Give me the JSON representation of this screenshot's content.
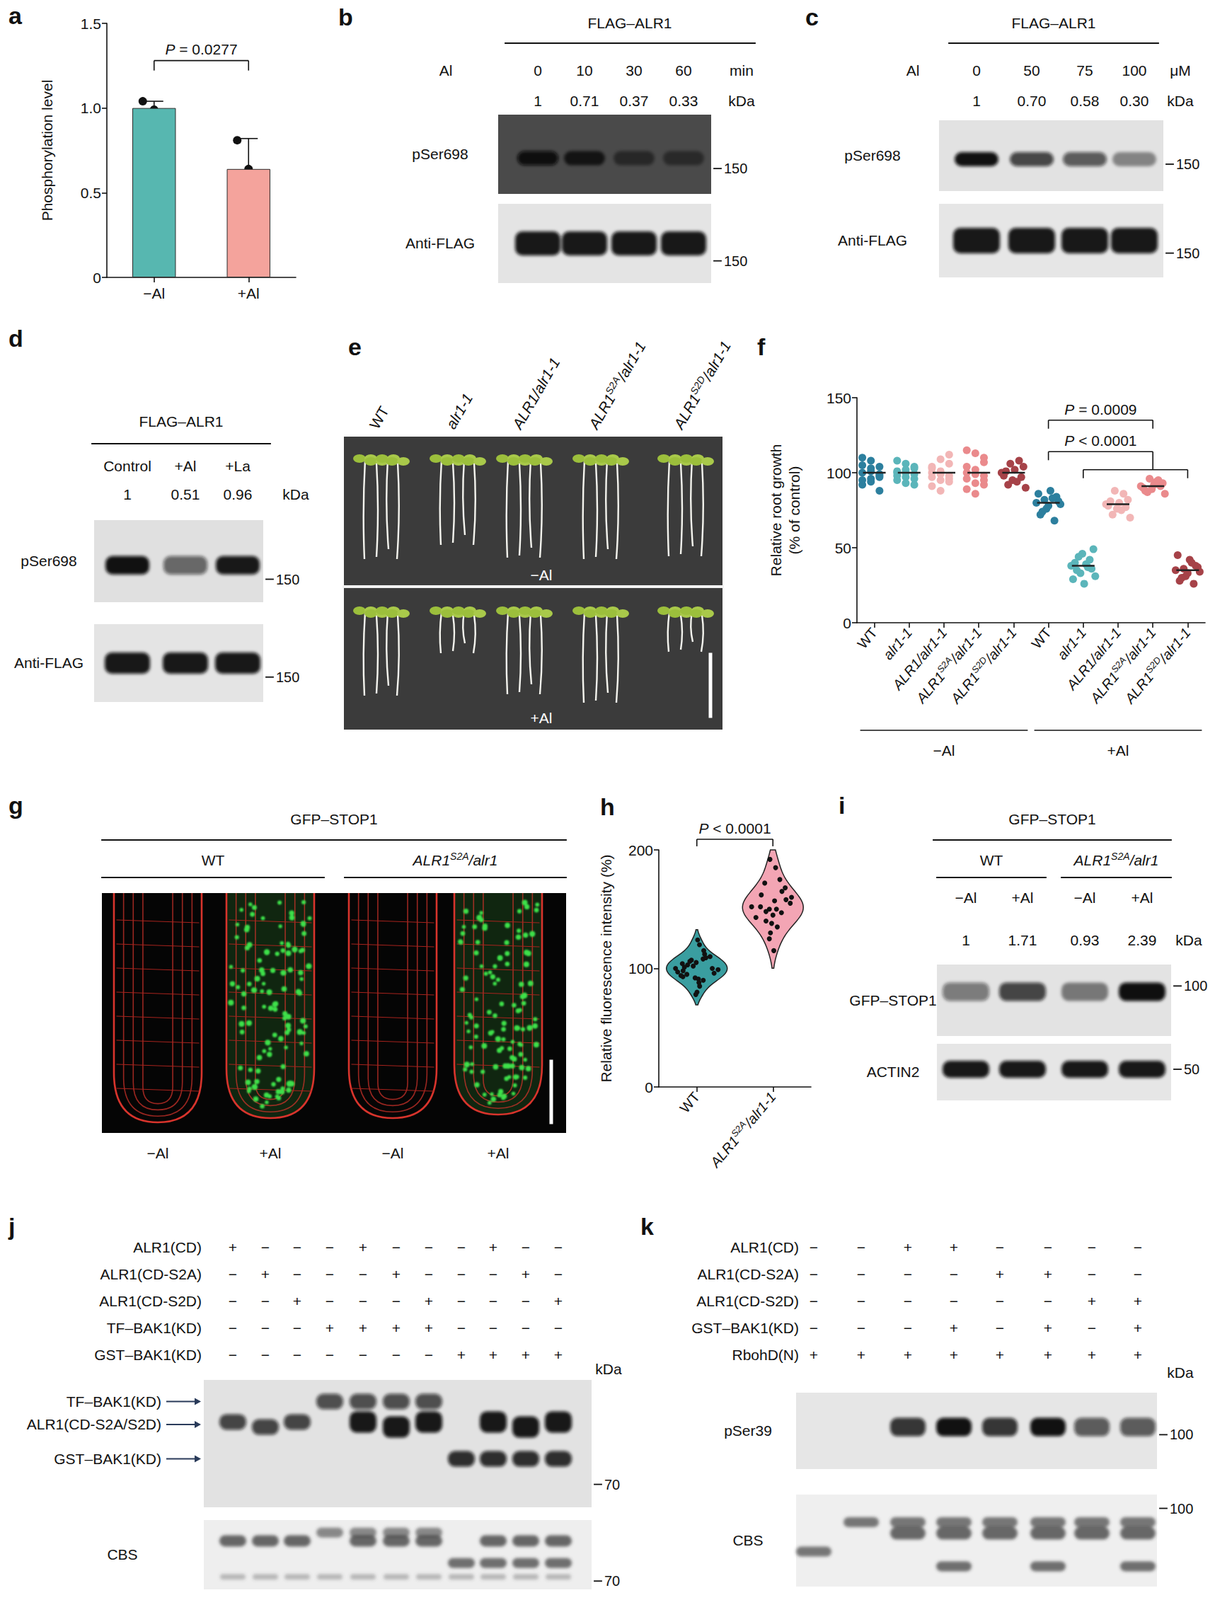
{
  "chart_data": [
    {
      "label": "a",
      "type": "bar",
      "categories": [
        "−Al",
        "+Al"
      ],
      "values": [
        1.0,
        0.64
      ],
      "errors": [
        0.04,
        0.18
      ],
      "points": [
        [
          1.04,
          0.99,
          0.97
        ],
        [
          0.81,
          0.64,
          0.46
        ]
      ],
      "colors": [
        "#57b7b0",
        "#f4a39c"
      ],
      "ylabel": "Phosphorylation level",
      "ylim": [
        0,
        1.5
      ],
      "yticks": [
        0,
        0.5,
        {
          "value": 1,
          "label": "1.0"
        },
        1.5
      ],
      "annotations": [
        {
          "text": "P = 0.0277",
          "between": [
            0,
            1
          ]
        }
      ]
    },
    {
      "label": "f",
      "type": "scatter",
      "categories": [
        "WT",
        "alr1-1",
        "ALR1/alr1-1",
        {
          "base": "ALR1",
          "sup": "S2A",
          "tail": "/alr1-1"
        },
        {
          "base": "ALR1",
          "sup": "S2D",
          "tail": "/alr1-1"
        },
        "WT",
        "alr1-1",
        "ALR1/alr1-1",
        {
          "base": "ALR1",
          "sup": "S2A",
          "tail": "/alr1-1"
        },
        {
          "base": "ALR1",
          "sup": "S2D",
          "tail": "/alr1-1"
        }
      ],
      "groups": [
        {
          "text": "−Al",
          "span": [
            0,
            4
          ]
        },
        {
          "text": "+Al",
          "span": [
            5,
            9
          ]
        }
      ],
      "colors": [
        "#2c7f9e",
        "#5bb5ba",
        "#f2b6b6",
        "#ea8a8c",
        "#a64248",
        "#2c7f9e",
        "#5bb5ba",
        "#f2b6b6",
        "#ea8a8c",
        "#a64248"
      ],
      "values": [
        [
          100,
          96,
          104,
          92,
          108,
          99,
          95,
          103,
          88,
          110,
          101,
          97,
          105,
          94,
          98
        ],
        [
          100,
          97,
          103,
          95,
          106,
          99,
          101,
          93,
          104,
          98,
          102,
          96,
          108,
          100,
          92
        ],
        [
          100,
          95,
          106,
          91,
          109,
          98,
          103,
          88,
          112,
          97,
          101,
          94,
          104,
          99,
          96
        ],
        [
          100,
          93,
          107,
          89,
          113,
          98,
          104,
          86,
          110,
          96,
          102,
          92,
          115,
          99,
          95
        ],
        [
          100,
          95,
          104,
          92,
          108,
          98,
          102,
          90,
          106,
          97,
          101,
          94
        ],
        [
          80,
          76,
          84,
          72,
          88,
          79,
          82,
          68,
          86,
          78,
          81,
          74,
          83
        ],
        [
          38,
          33,
          42,
          29,
          46,
          36,
          40,
          26,
          49,
          35,
          39,
          31,
          44,
          37
        ],
        [
          79,
          76,
          82,
          72,
          86,
          78,
          80,
          70,
          88,
          77,
          81,
          75
        ],
        [
          91,
          89,
          93,
          87,
          95,
          90,
          92,
          86,
          96,
          91,
          88,
          94
        ],
        [
          35,
          31,
          38,
          28,
          42,
          34,
          36,
          26,
          45,
          33,
          37,
          30,
          40
        ]
      ],
      "means": [
        100,
        100,
        100,
        100,
        100,
        80,
        38,
        79,
        91,
        35
      ],
      "ylabel": "Relative root growth\n(% of control)",
      "ylim": [
        0,
        150
      ],
      "yticks": [
        0,
        50,
        100,
        150
      ],
      "annotations": [
        {
          "text": "P = 0.0009",
          "between": [
            5,
            8
          ]
        },
        {
          "text": "P < 0.0001",
          "between": [
            5,
            6,
            9
          ]
        }
      ]
    },
    {
      "label": "h",
      "type": "violin",
      "categories": [
        "WT",
        {
          "base": "ALR1",
          "sup": "S2A",
          "tail": "/alr1-1"
        }
      ],
      "colors": [
        "#3a9ea0",
        "#f3a5b4"
      ],
      "values": [
        [
          100,
          95,
          105,
          90,
          110,
          98,
          102,
          85,
          115,
          93,
          107,
          88,
          112,
          97,
          103,
          80,
          120,
          99,
          101,
          92,
          108,
          96,
          104,
          78,
          124,
          100,
          94,
          106,
          91,
          109
        ],
        [
          152,
          145,
          160,
          138,
          168,
          150,
          155,
          130,
          175,
          148,
          158,
          140,
          165,
          125,
          185,
          152,
          147,
          162,
          135,
          172,
          115,
          192,
          150,
          143,
          157
        ]
      ],
      "ylabel": "Relative fluorescence intensity (%)",
      "ylim": [
        0,
        200
      ],
      "yticks": [
        0,
        100,
        200
      ],
      "annotations": [
        {
          "text": "P < 0.0001",
          "between": [
            0,
            1
          ]
        }
      ]
    }
  ],
  "blots": {
    "b": {
      "label": "b",
      "header": "FLAG–ALR1",
      "condition": "Al",
      "lanes": [
        "0",
        "10",
        "30",
        "60"
      ],
      "unit": "min",
      "ratios": [
        "1",
        "0.71",
        "0.37",
        "0.33"
      ],
      "marker_unit": "kDa",
      "rows": [
        {
          "name": "pSer698",
          "markers": [
            "150"
          ]
        },
        {
          "name": "Anti-FLAG",
          "markers": [
            "150"
          ]
        }
      ]
    },
    "c": {
      "label": "c",
      "header": "FLAG–ALR1",
      "condition": "Al",
      "lanes": [
        "0",
        "50",
        "75",
        "100"
      ],
      "unit": "μM",
      "ratios": [
        "1",
        "0.70",
        "0.58",
        "0.30"
      ],
      "marker_unit": "kDa",
      "rows": [
        {
          "name": "pSer698",
          "markers": [
            "150"
          ]
        },
        {
          "name": "Anti-FLAG",
          "markers": [
            "150"
          ]
        }
      ]
    },
    "d": {
      "label": "d",
      "header": "FLAG–ALR1",
      "lanes": [
        "Control",
        "+Al",
        "+La"
      ],
      "ratios": [
        "1",
        "0.51",
        "0.96"
      ],
      "marker_unit": "kDa",
      "rows": [
        {
          "name": "pSer698",
          "markers": [
            "150"
          ]
        },
        {
          "name": "Anti-FLAG",
          "markers": [
            "150"
          ]
        }
      ]
    },
    "i": {
      "label": "i",
      "header": "GFP–STOP1",
      "groups": [
        "WT",
        {
          "base": "ALR1",
          "sup": "S2A",
          "tail": "/alr1"
        }
      ],
      "lanes": [
        "−Al",
        "+Al",
        "−Al",
        "+Al"
      ],
      "ratios": [
        "1",
        "1.71",
        "0.93",
        "2.39"
      ],
      "marker_unit": "kDa",
      "rows": [
        {
          "name": "GFP–STOP1",
          "markers": [
            "100"
          ]
        },
        {
          "name": "ACTIN2",
          "markers": [
            "50"
          ]
        }
      ]
    },
    "j": {
      "label": "j",
      "table": [
        {
          "name": "ALR1(CD)",
          "signs": [
            "+",
            "−",
            "−",
            "−",
            "+",
            "−",
            "−",
            "−",
            "+",
            "−",
            "−"
          ]
        },
        {
          "name": "ALR1(CD-S2A)",
          "signs": [
            "−",
            "+",
            "−",
            "−",
            "−",
            "+",
            "−",
            "−",
            "−",
            "+",
            "−"
          ]
        },
        {
          "name": "ALR1(CD-S2D)",
          "signs": [
            "−",
            "−",
            "+",
            "−",
            "−",
            "−",
            "+",
            "−",
            "−",
            "−",
            "+"
          ]
        },
        {
          "name": "TF–BAK1(KD)",
          "signs": [
            "−",
            "−",
            "−",
            "+",
            "+",
            "+",
            "+",
            "−",
            "−",
            "−",
            "−"
          ]
        },
        {
          "name": "GST–BAK1(KD)",
          "signs": [
            "−",
            "−",
            "−",
            "−",
            "−",
            "−",
            "−",
            "+",
            "+",
            "+",
            "+"
          ]
        }
      ],
      "arrows": [
        "TF–BAK1(KD)",
        "ALR1(CD-S2A/S2D)",
        "GST–BAK1(KD)"
      ],
      "marker_unit": "kDa",
      "rows": [
        {
          "markers": [
            "70"
          ]
        },
        {
          "name": "CBS",
          "markers": [
            "70"
          ]
        }
      ]
    },
    "k": {
      "label": "k",
      "table": [
        {
          "name": "ALR1(CD)",
          "signs": [
            "−",
            "−",
            "+",
            "+",
            "−",
            "−",
            "−",
            "−"
          ]
        },
        {
          "name": "ALR1(CD-S2A)",
          "signs": [
            "−",
            "−",
            "−",
            "−",
            "+",
            "+",
            "−",
            "−"
          ]
        },
        {
          "name": "ALR1(CD-S2D)",
          "signs": [
            "−",
            "−",
            "−",
            "−",
            "−",
            "−",
            "+",
            "+"
          ]
        },
        {
          "name": "GST–BAK1(KD)",
          "signs": [
            "−",
            "−",
            "−",
            "+",
            "−",
            "+",
            "−",
            "+"
          ]
        },
        {
          "name": "RbohD(N)",
          "signs": [
            "+",
            "+",
            "+",
            "+",
            "+",
            "+",
            "+",
            "+"
          ]
        }
      ],
      "marker_unit": "kDa",
      "rows": [
        {
          "name": "pSer39",
          "markers": [
            "100"
          ]
        },
        {
          "name": "CBS",
          "markers": [
            "100"
          ]
        }
      ]
    }
  },
  "images": {
    "e": {
      "label": "e",
      "columns": [
        "WT",
        "alr1-1",
        "ALR1/alr1-1",
        {
          "base": "ALR1",
          "sup": "S2A",
          "tail": "/alr1-1"
        },
        {
          "base": "ALR1",
          "sup": "S2D",
          "tail": "/alr1-1"
        }
      ],
      "rows": [
        "−Al",
        "+Al"
      ]
    },
    "g": {
      "label": "g",
      "header": "GFP–STOP1",
      "groups": [
        "WT",
        {
          "base": "ALR1",
          "sup": "S2A",
          "tail": "/alr1"
        }
      ],
      "columns": [
        "−Al",
        "+Al",
        "−Al",
        "+Al"
      ]
    }
  }
}
